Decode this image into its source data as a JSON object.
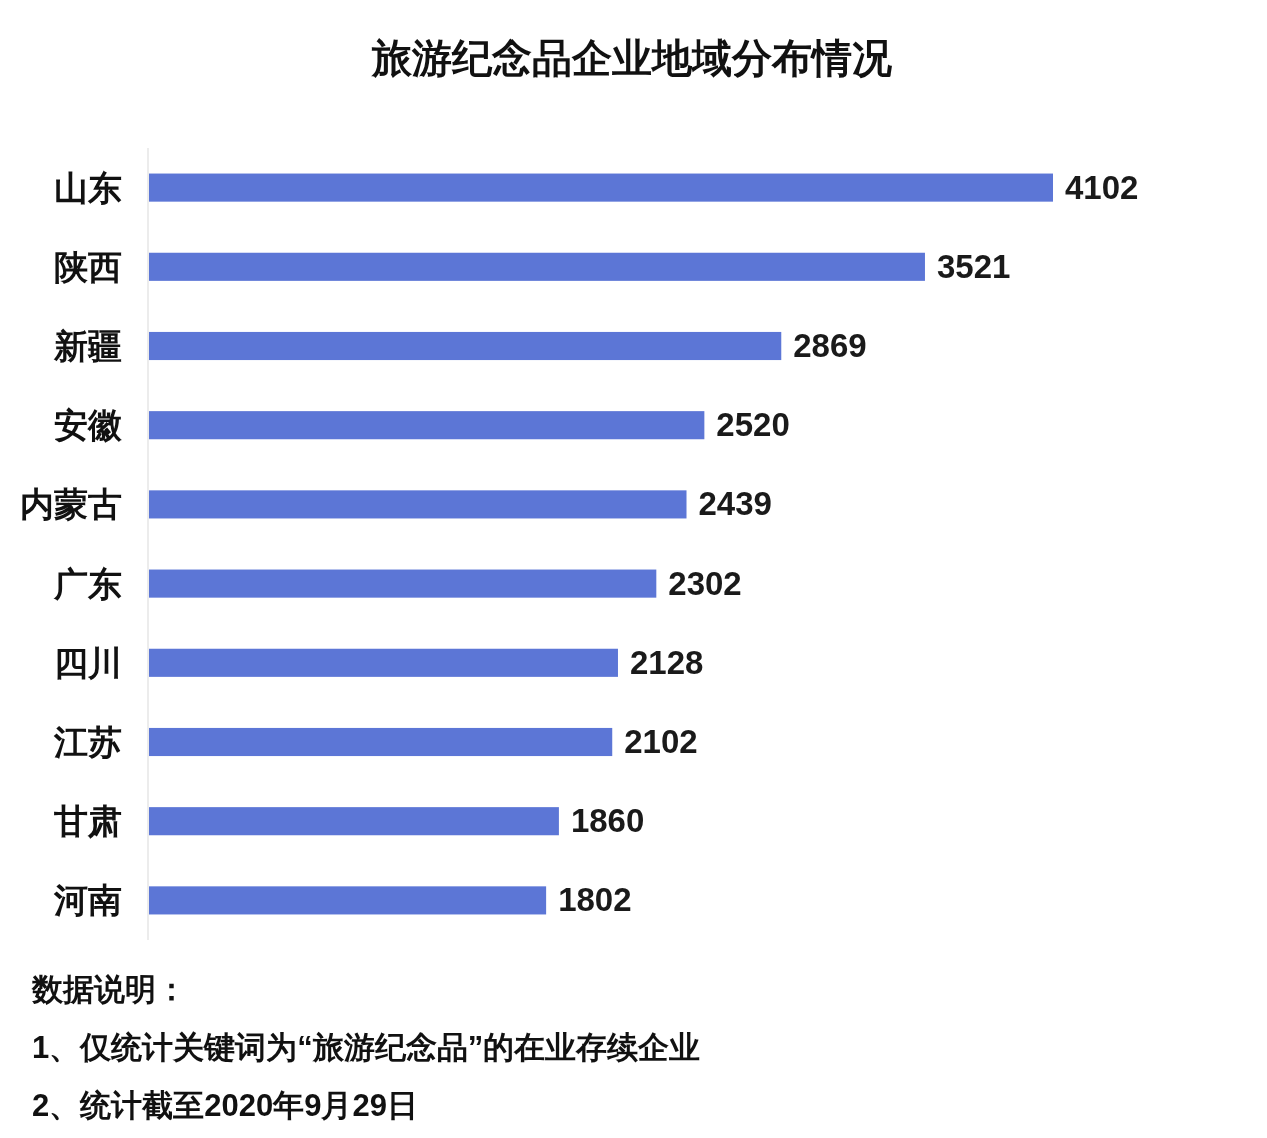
{
  "chart_data": {
    "type": "bar",
    "orientation": "horizontal",
    "title": "旅游纪念品企业地域分布情况",
    "categories": [
      "山东",
      "陕西",
      "新疆",
      "安徽",
      "内蒙古",
      "广东",
      "四川",
      "江苏",
      "甘肃",
      "河南"
    ],
    "values": [
      4102,
      3521,
      2869,
      2520,
      2439,
      2302,
      2128,
      2102,
      1860,
      1802
    ],
    "color": "#5c76d6",
    "data_labels": true,
    "annotations": [
      "数据说明：",
      "1、仅统计关键词为“旅游纪念品”的在业存续企业",
      "2、统计截至2020年9月29日"
    ]
  }
}
